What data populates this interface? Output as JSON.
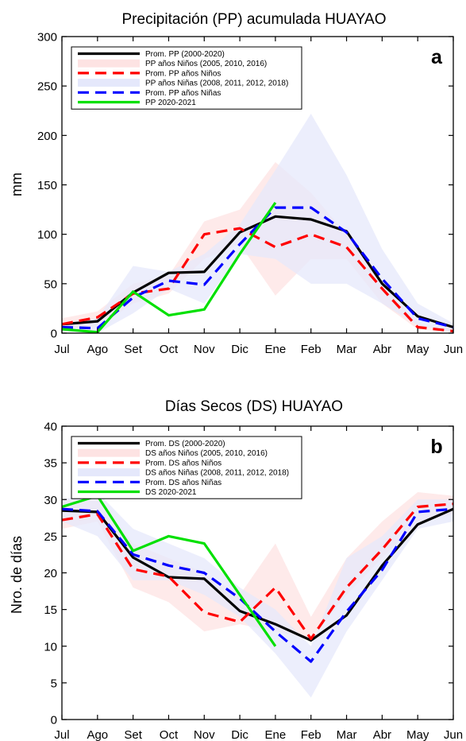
{
  "chart_data": [
    {
      "type": "line",
      "panel_label": "a",
      "title": "Precipitación (PP) acumulada HUAYAO",
      "xlabel": "",
      "ylabel": "mm",
      "categories": [
        "Jul",
        "Ago",
        "Set",
        "Oct",
        "Nov",
        "Dic",
        "Ene",
        "Feb",
        "Mar",
        "Abr",
        "May",
        "Jun"
      ],
      "ylim": [
        0,
        300
      ],
      "yticks": [
        0,
        50,
        100,
        150,
        200,
        250,
        300
      ],
      "legend_position": "top-left",
      "bands": [
        {
          "name": "PP años Niños (2005, 2010, 2016)",
          "color": "#fde3e3",
          "lower": [
            3,
            6,
            30,
            40,
            75,
            90,
            38,
            75,
            75,
            30,
            4,
            1
          ],
          "upper": [
            15,
            22,
            50,
            58,
            113,
            125,
            173,
            142,
            100,
            50,
            10,
            5
          ]
        },
        {
          "name": "PP años Niñas (2008, 2011, 2012, 2018)",
          "color": "#e5e8fb",
          "lower": [
            2,
            0,
            20,
            45,
            30,
            80,
            75,
            50,
            50,
            30,
            8,
            1
          ],
          "upper": [
            10,
            15,
            68,
            62,
            80,
            110,
            165,
            222,
            160,
            85,
            30,
            10
          ]
        }
      ],
      "series": [
        {
          "name": "Prom. PP (2000-2020)",
          "color": "#000000",
          "dash": "solid",
          "values": [
            9,
            12,
            41,
            61,
            62,
            102,
            118,
            115,
            103,
            50,
            17,
            6
          ]
        },
        {
          "name": "Prom. PP años Niños",
          "color": "#ff0000",
          "dash": "dashed",
          "values": [
            9,
            16,
            40,
            45,
            100,
            106,
            87,
            100,
            87,
            45,
            6,
            2
          ]
        },
        {
          "name": "Prom. PP años Niñas",
          "color": "#0000ff",
          "dash": "dashed",
          "values": [
            6,
            5,
            36,
            53,
            49,
            90,
            127,
            127,
            102,
            55,
            15,
            6
          ]
        },
        {
          "name": "PP 2020-2021",
          "color": "#00e000",
          "dash": "solid",
          "values": [
            4,
            1,
            42,
            18,
            24,
            80,
            132,
            null,
            null,
            null,
            null,
            null
          ]
        }
      ]
    },
    {
      "type": "line",
      "panel_label": "b",
      "title": "Días Secos (DS) HUAYAO",
      "xlabel": "",
      "ylabel": "Nro. de días",
      "categories": [
        "Jul",
        "Ago",
        "Set",
        "Oct",
        "Nov",
        "Dic",
        "Ene",
        "Feb",
        "Mar",
        "Abr",
        "May",
        "Jun"
      ],
      "ylim": [
        0,
        40
      ],
      "yticks": [
        0,
        5,
        10,
        15,
        20,
        25,
        30,
        35,
        40
      ],
      "legend_position": "top-left",
      "bands": [
        {
          "name": "DS años Niños (2005, 2010, 2016)",
          "color": "#fde3e3",
          "lower": [
            26,
            27,
            18,
            16,
            12,
            13,
            12,
            11,
            17,
            22,
            27,
            28
          ],
          "upper": [
            30,
            30,
            24,
            22,
            20,
            17,
            24,
            14,
            22,
            27,
            31,
            30.5
          ]
        },
        {
          "name": "DS años Niñas (2008, 2011, 2012, 2018)",
          "color": "#e5e8fb",
          "lower": [
            27,
            25,
            19,
            19,
            17,
            14,
            9,
            3,
            12,
            19,
            26,
            27
          ],
          "upper": [
            30,
            31,
            26,
            24,
            22,
            18,
            15,
            10,
            22,
            25,
            30,
            30
          ]
        }
      ],
      "series": [
        {
          "name": "Prom. DS (2000-2020)",
          "color": "#000000",
          "dash": "solid",
          "values": [
            28.5,
            28.3,
            22.1,
            19.4,
            19.2,
            14.8,
            13,
            10.8,
            14.2,
            21,
            26.6,
            28.7
          ]
        },
        {
          "name": "Prom. DS años Niños",
          "color": "#ff0000",
          "dash": "dashed",
          "values": [
            27.2,
            28.0,
            20.5,
            19.5,
            14.6,
            13.3,
            18,
            11,
            18,
            23.2,
            29,
            29.4
          ]
        },
        {
          "name": "Prom. DS años Niñas",
          "color": "#0000ff",
          "dash": "dashed",
          "values": [
            28.7,
            28.4,
            22.5,
            21,
            20,
            16.5,
            12,
            7.9,
            14.7,
            20.4,
            28.3,
            28.7
          ]
        },
        {
          "name": "DS 2020-2021",
          "color": "#00e000",
          "dash": "solid",
          "values": [
            29,
            30.5,
            23,
            25,
            24,
            17,
            10,
            null,
            null,
            null,
            null,
            null
          ]
        }
      ]
    }
  ]
}
